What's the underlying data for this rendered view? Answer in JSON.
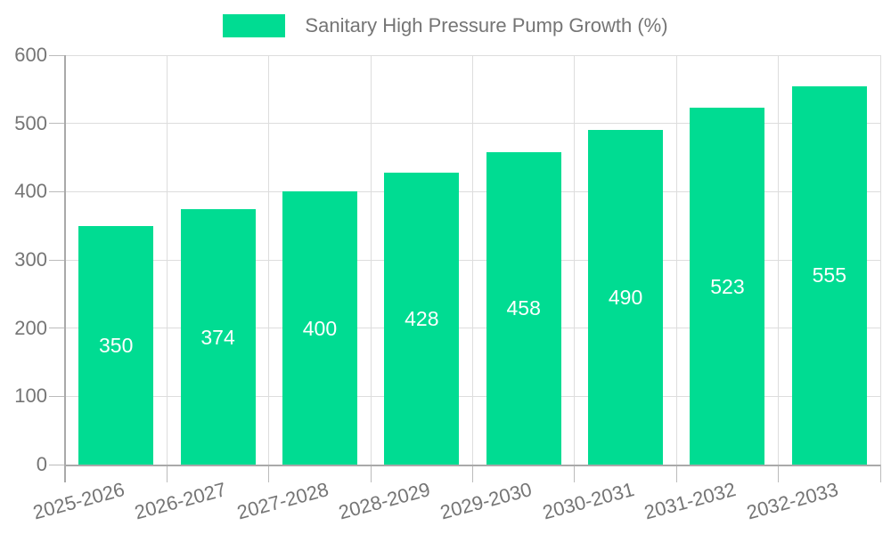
{
  "chart_data": {
    "type": "bar",
    "title": "Sanitary High Pressure Pump Growth (%)",
    "legend_position": "top",
    "categories": [
      "2025-2026",
      "2026-2027",
      "2027-2028",
      "2028-2029",
      "2029-2030",
      "2030-2031",
      "2031-2032",
      "2032-2033"
    ],
    "values": [
      350,
      374,
      400,
      428,
      458,
      490,
      523,
      555
    ],
    "xlabel": "",
    "ylabel": "",
    "ylim": [
      0,
      600
    ],
    "yticks": [
      0,
      100,
      200,
      300,
      400,
      500,
      600
    ],
    "grid": true,
    "colors": {
      "bar": "#00DC92",
      "bar_value_label": "#ffffff",
      "axis_text": "#757575",
      "gridline": "#dddddd",
      "axis_line": "#a9a9a9",
      "tick": "#bbbbbb",
      "background": "#ffffff"
    }
  }
}
